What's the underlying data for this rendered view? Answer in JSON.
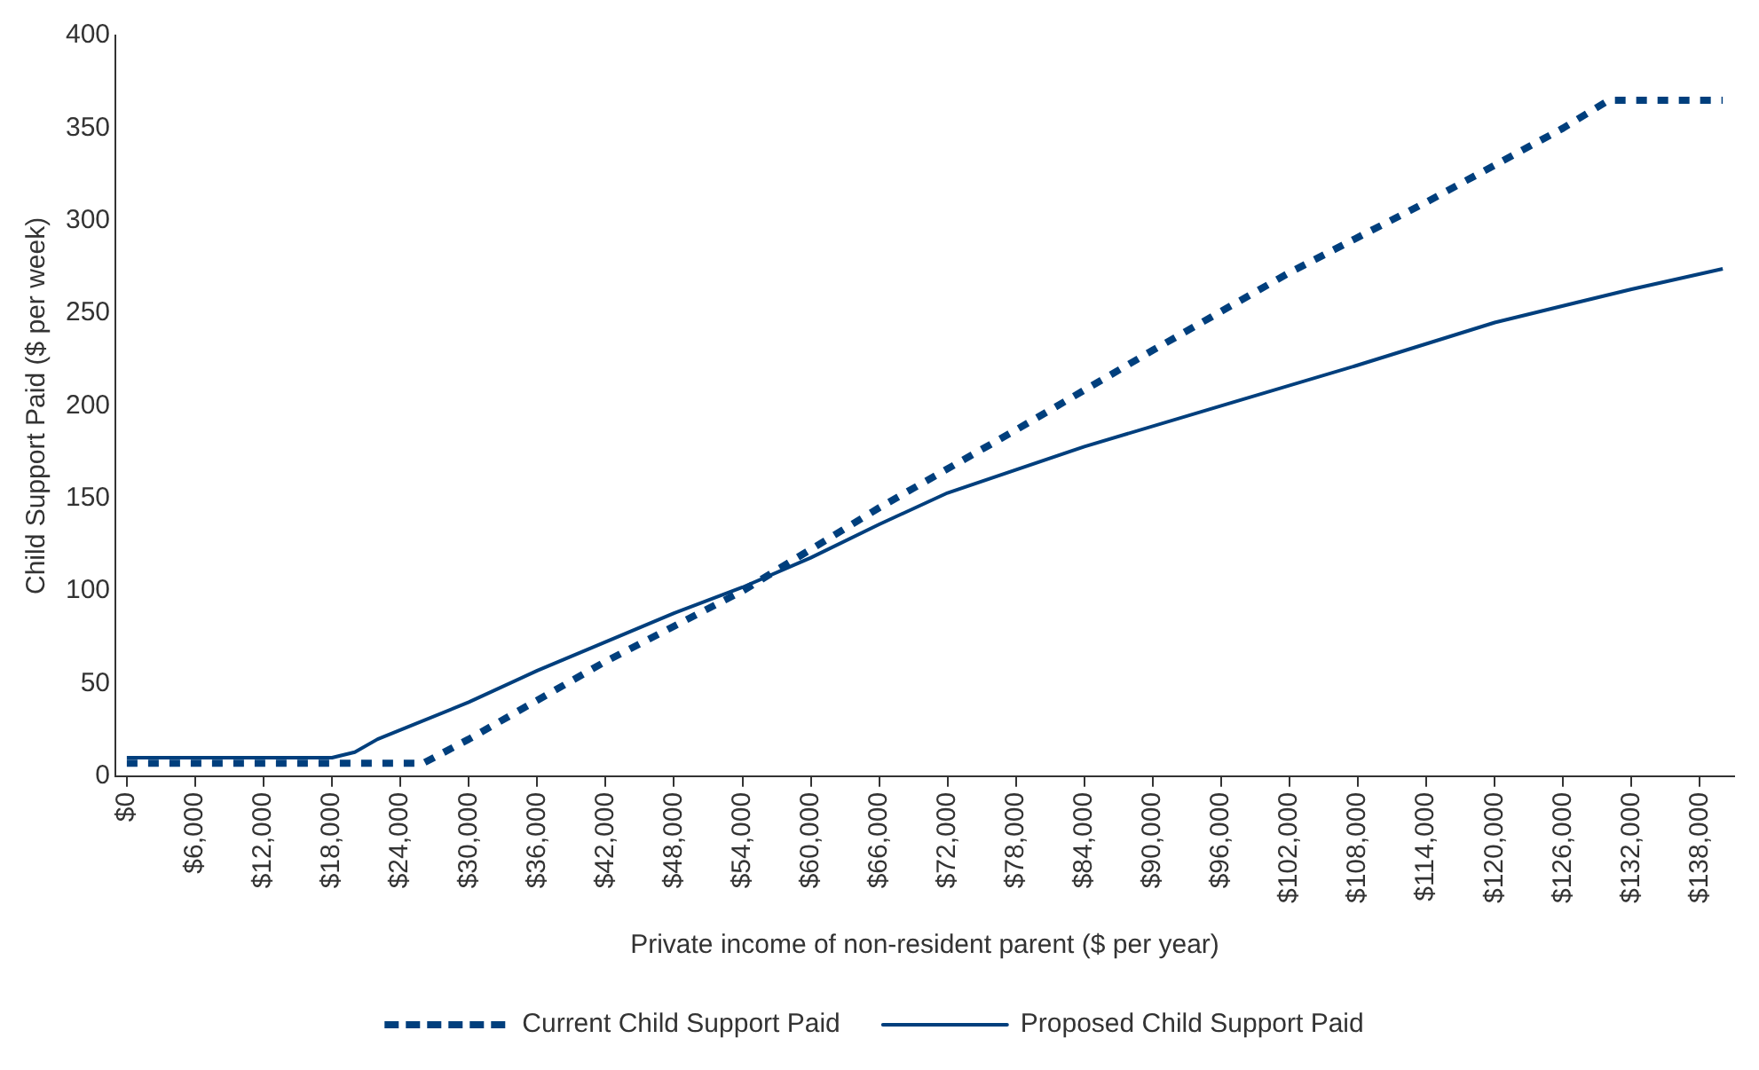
{
  "chart_data": {
    "type": "line",
    "xlabel": "Private income of non-resident parent ($ per year)",
    "ylabel": "Child Support Paid ($ per week)",
    "xlim": [
      -1000,
      141000
    ],
    "xticks": [
      {
        "value": 0,
        "label": "$0"
      },
      {
        "value": 6000,
        "label": "$6,000"
      },
      {
        "value": 12000,
        "label": "$12,000"
      },
      {
        "value": 18000,
        "label": "$18,000"
      },
      {
        "value": 24000,
        "label": "$24,000"
      },
      {
        "value": 30000,
        "label": "$30,000"
      },
      {
        "value": 36000,
        "label": "$36,000"
      },
      {
        "value": 42000,
        "label": "$42,000"
      },
      {
        "value": 48000,
        "label": "$48,000"
      },
      {
        "value": 54000,
        "label": "$54,000"
      },
      {
        "value": 60000,
        "label": "$60,000"
      },
      {
        "value": 66000,
        "label": "$66,000"
      },
      {
        "value": 72000,
        "label": "$72,000"
      },
      {
        "value": 78000,
        "label": "$78,000"
      },
      {
        "value": 84000,
        "label": "$84,000"
      },
      {
        "value": 90000,
        "label": "$90,000"
      },
      {
        "value": 96000,
        "label": "$96,000"
      },
      {
        "value": 102000,
        "label": "$102,000"
      },
      {
        "value": 108000,
        "label": "$108,000"
      },
      {
        "value": 114000,
        "label": "$114,000"
      },
      {
        "value": 120000,
        "label": "$120,000"
      },
      {
        "value": 126000,
        "label": "$126,000"
      },
      {
        "value": 132000,
        "label": "$132,000"
      },
      {
        "value": 138000,
        "label": "$138,000"
      }
    ],
    "ylim": [
      0,
      400
    ],
    "yticks": [
      0,
      50,
      100,
      150,
      200,
      250,
      300,
      350,
      400
    ],
    "grid": false,
    "legend": "bottom",
    "marker": "none",
    "series": [
      {
        "name": "Current Child Support Paid",
        "color": "#003f7d",
        "line_style": "dotted",
        "x": [
          0,
          24000,
          26000,
          30000,
          42000,
          54000,
          66000,
          78000,
          90000,
          102000,
          114000,
          126000,
          130000,
          140000
        ],
        "values": [
          7,
          7,
          7,
          20,
          62,
          100,
          145,
          187,
          230,
          272,
          310,
          350,
          365,
          365
        ]
      },
      {
        "name": "Proposed Child Support Paid",
        "color": "#003f7d",
        "line_style": "solid",
        "x": [
          0,
          18000,
          20000,
          22000,
          30000,
          36000,
          48000,
          54000,
          60000,
          66000,
          72000,
          84000,
          96000,
          108000,
          120000,
          132000,
          140000
        ],
        "values": [
          10,
          10,
          13,
          20,
          40,
          57,
          88,
          102,
          118,
          136,
          153,
          178,
          200,
          222,
          245,
          263,
          274
        ]
      }
    ]
  }
}
